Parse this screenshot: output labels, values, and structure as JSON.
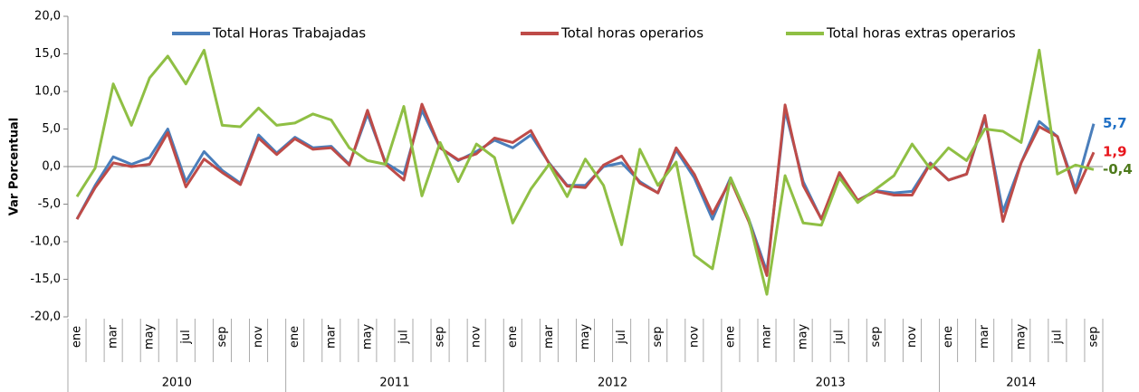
{
  "chart_data": {
    "type": "line",
    "y_label": "Var Porcentual",
    "categories": [
      "ene",
      null,
      "mar",
      null,
      "may",
      null,
      "jul",
      null,
      "sep",
      null,
      "nov",
      null,
      "ene",
      null,
      "mar",
      null,
      "may",
      null,
      "jul",
      null,
      "sep",
      null,
      "nov",
      null,
      "ene",
      null,
      "mar",
      null,
      "may",
      null,
      "jul",
      null,
      "sep",
      null,
      "nov",
      null,
      "ene",
      null,
      "mar",
      null,
      "may",
      null,
      "jul",
      null,
      "sep",
      null,
      "nov",
      null,
      "ene",
      null,
      "mar",
      null,
      "may",
      null,
      "jul",
      null,
      "sep"
    ],
    "years": [
      "2010",
      "2011",
      "2012",
      "2013",
      "2014"
    ],
    "series": [
      {
        "name": "Total Horas Trabajadas",
        "color": "#4a7ebb",
        "label_color": "#1f6fc4",
        "values": [
          -7,
          -2.5,
          1.3,
          0.3,
          1.2,
          5,
          -2,
          2,
          -0.5,
          -2.2,
          4.2,
          1.8,
          3.9,
          2.5,
          2.7,
          0.3,
          7,
          0.5,
          -1,
          7.5,
          2.5,
          0.8,
          2,
          3.5,
          2.5,
          4.2,
          0.5,
          -2.5,
          -2.5,
          0,
          0.5,
          -2,
          -3.5,
          2.2,
          -1.5,
          -7,
          -1.5,
          -7,
          -14,
          7.5,
          -2,
          -7,
          -1,
          -4.5,
          -3.2,
          -3.5,
          -3.3,
          0.5,
          -1.8,
          -1,
          6.5,
          -6,
          0.5,
          6,
          4,
          -3,
          5.7
        ],
        "value_labels": [
          null,
          null,
          null,
          null,
          null,
          null,
          null,
          null,
          null,
          null,
          null,
          null,
          null,
          null,
          null,
          null,
          null,
          null,
          null,
          null,
          null,
          null,
          null,
          null,
          null,
          null,
          null,
          null,
          null,
          null,
          null,
          null,
          null,
          null,
          null,
          null,
          null,
          null,
          null,
          null,
          null,
          null,
          null,
          null,
          null,
          null,
          null,
          null,
          null,
          null,
          null,
          null,
          null,
          null,
          null,
          null,
          "5,7"
        ]
      },
      {
        "name": "Total horas operarios",
        "color": "#be4b48",
        "label_color": "#e8141b",
        "values": [
          -7,
          -2.8,
          0.5,
          0,
          0.3,
          4.5,
          -2.7,
          1,
          -0.8,
          -2.4,
          3.8,
          1.6,
          3.7,
          2.3,
          2.5,
          0.2,
          7.5,
          0.3,
          -1.8,
          8.3,
          2.5,
          0.9,
          1.7,
          3.8,
          3.2,
          4.8,
          0.4,
          -2.6,
          -2.8,
          0.2,
          1.4,
          -2.2,
          -3.5,
          2.5,
          -1,
          -6.3,
          -1.8,
          -7.3,
          -14.5,
          8.2,
          -2.5,
          -7,
          -0.8,
          -4.5,
          -3.3,
          -3.8,
          -3.8,
          0.4,
          -1.8,
          -1,
          6.8,
          -7.3,
          0.5,
          5.3,
          4,
          -3.5,
          1.9
        ],
        "value_labels": [
          null,
          null,
          null,
          null,
          null,
          null,
          null,
          null,
          null,
          null,
          null,
          null,
          null,
          null,
          null,
          null,
          null,
          null,
          null,
          null,
          null,
          null,
          null,
          null,
          null,
          null,
          null,
          null,
          null,
          null,
          null,
          null,
          null,
          null,
          null,
          null,
          null,
          null,
          null,
          null,
          null,
          null,
          null,
          null,
          null,
          null,
          null,
          null,
          null,
          null,
          null,
          null,
          null,
          null,
          null,
          null,
          "1,9"
        ]
      },
      {
        "name": "Total horas extras operarios",
        "color": "#8fbf44",
        "label_color": "#4e7a1c",
        "values": [
          -4,
          -0.2,
          11,
          5.5,
          11.8,
          14.7,
          11,
          15.5,
          5.5,
          5.3,
          7.8,
          5.5,
          5.8,
          7,
          6.2,
          2.5,
          0.8,
          0.3,
          8,
          -3.9,
          3.2,
          -2,
          3,
          1.2,
          -7.5,
          -3,
          0.3,
          -4,
          1,
          -2.5,
          -10.4,
          2.3,
          -2.5,
          0.6,
          -11.8,
          -13.6,
          -1.5,
          -7,
          -17,
          -1.2,
          -7.5,
          -7.8,
          -1.5,
          -4.8,
          -3,
          -1.2,
          3,
          -0.3,
          2.5,
          0.8,
          5,
          4.7,
          3.2,
          15.5,
          -1,
          0.2,
          -0.4
        ],
        "value_labels": [
          null,
          null,
          null,
          null,
          null,
          null,
          null,
          null,
          null,
          null,
          null,
          null,
          null,
          null,
          null,
          null,
          null,
          null,
          null,
          null,
          null,
          null,
          null,
          null,
          null,
          null,
          null,
          null,
          null,
          null,
          null,
          null,
          null,
          null,
          null,
          null,
          null,
          null,
          null,
          null,
          null,
          null,
          null,
          null,
          null,
          null,
          null,
          null,
          null,
          null,
          null,
          null,
          null,
          null,
          null,
          null,
          "-0,4"
        ]
      }
    ],
    "ylim": [
      -20,
      20
    ],
    "yticks": [
      {
        "value": -20,
        "label": "-20,0"
      },
      {
        "value": -15,
        "label": "-15,0"
      },
      {
        "value": -10,
        "label": "-10,0"
      },
      {
        "value": -5,
        "label": "-5,0"
      },
      {
        "value": 0,
        "label": "0,0"
      },
      {
        "value": 5,
        "label": "5,0"
      },
      {
        "value": 10,
        "label": "10,0"
      },
      {
        "value": 15,
        "label": "15,0"
      },
      {
        "value": 20,
        "label": "20,0"
      }
    ],
    "legend": "top",
    "grid": false
  }
}
